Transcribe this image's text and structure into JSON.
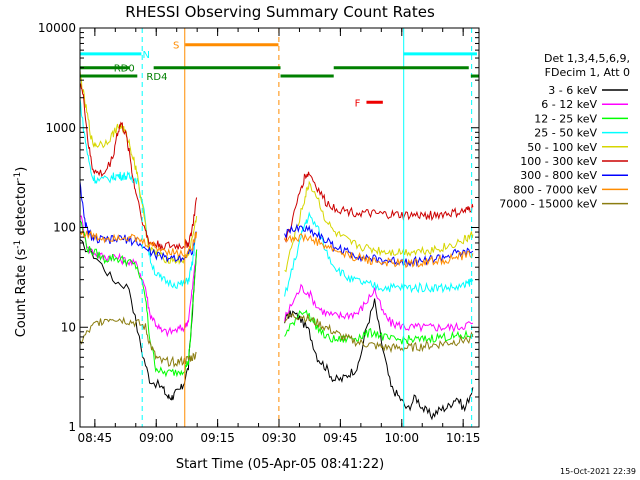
{
  "chart_data": {
    "type": "line",
    "title": "RHESSI Observing Summary Count Rates",
    "xlabel": "Start Time (05-Apr-05 08:41:22)",
    "ylabel": "Count Rate (s",
    "ylabel_sup1": "-1",
    "ylabel_mid": " detector",
    "ylabel_sup2": "-1",
    "ylabel_end": ")",
    "footer": "15-Oct-2021 22:39",
    "x_unit": "minutes after 08:41:22",
    "xlim": [
      0,
      97.5
    ],
    "ylim": [
      1,
      10000
    ],
    "yscale": "log",
    "x_ticks": [
      {
        "x": 3.63,
        "label": "08:45"
      },
      {
        "x": 18.63,
        "label": "09:00"
      },
      {
        "x": 33.63,
        "label": "09:15"
      },
      {
        "x": 48.63,
        "label": "09:30"
      },
      {
        "x": 63.63,
        "label": "09:45"
      },
      {
        "x": 78.63,
        "label": "10:00"
      },
      {
        "x": 93.63,
        "label": "10:15"
      }
    ],
    "y_ticks": [
      {
        "y": 1,
        "label": "1"
      },
      {
        "y": 10,
        "label": "10"
      },
      {
        "y": 100,
        "label": "100"
      },
      {
        "y": 1000,
        "label": "1000"
      },
      {
        "y": 10000,
        "label": "10000"
      }
    ],
    "legend_title": [
      "Det 1,3,4,5,6,9,",
      "FDecim 1, Att 0"
    ],
    "series": [
      {
        "name": "3 - 6 keV",
        "color": "#000000",
        "x": [
          0,
          4,
          8,
          12,
          15,
          17,
          20,
          21.5,
          22.5,
          23.5,
          25,
          26.5,
          27.5,
          28.5,
          50,
          52,
          54,
          56,
          58,
          60,
          62,
          64,
          66,
          68,
          70,
          72,
          74,
          76,
          78,
          80,
          82,
          84,
          86,
          88,
          90,
          92,
          94,
          96
        ],
        "y": [
          70,
          50,
          30,
          25,
          6,
          3,
          2.5,
          2,
          2,
          2.2,
          2.5,
          4,
          15,
          60,
          12,
          14,
          12,
          9,
          5,
          4,
          3,
          3,
          3.5,
          4,
          10,
          18,
          6,
          2.5,
          2,
          1.5,
          2,
          1.5,
          1.3,
          1.5,
          1.6,
          2,
          1.5,
          2.5
        ]
      },
      {
        "name": "6 - 12 keV",
        "color": "#ff00ff",
        "x": [
          0,
          2,
          4,
          6,
          8,
          10,
          12,
          14,
          16,
          17,
          18.5,
          20,
          22,
          24,
          25.5,
          26.5,
          27.5,
          28.5,
          50,
          52,
          54,
          56,
          58,
          60,
          62,
          64,
          66,
          68,
          70,
          72,
          74,
          76,
          78,
          80,
          82,
          84,
          86,
          88,
          90,
          92,
          94,
          96
        ],
        "y": [
          140,
          60,
          55,
          50,
          52,
          48,
          45,
          42,
          25,
          14,
          11,
          9,
          9,
          9.5,
          10,
          12,
          25,
          60,
          12,
          18,
          25,
          22,
          16,
          14,
          13,
          13,
          13.5,
          14,
          18,
          24,
          14,
          11,
          10.5,
          10,
          10,
          10,
          10,
          10,
          10,
          10,
          10.5,
          11
        ]
      },
      {
        "name": "12 - 25 keV",
        "color": "#00ff00",
        "x": [
          0,
          2,
          4,
          6,
          8,
          10,
          12,
          14,
          16,
          17,
          18.5,
          20,
          22,
          24,
          25.5,
          26.5,
          27.5,
          28.5,
          50,
          52,
          54,
          56,
          58,
          60,
          62,
          64,
          66,
          68,
          70,
          72,
          74,
          76,
          78,
          80,
          82,
          84,
          86,
          88,
          90,
          92,
          94,
          96
        ],
        "y": [
          120,
          60,
          55,
          48,
          50,
          48,
          45,
          40,
          20,
          8,
          4,
          3.5,
          3.5,
          3.6,
          3.8,
          4.5,
          15,
          60,
          8,
          11,
          15,
          13,
          10,
          8,
          7.5,
          7.5,
          7.8,
          8,
          8.5,
          9,
          8,
          7.5,
          7.5,
          7.5,
          7.5,
          7.5,
          7.8,
          8,
          8,
          8,
          8.2,
          8.5
        ]
      },
      {
        "name": "25 - 50 keV",
        "color": "#00ffff",
        "x": [
          0,
          1,
          2,
          3,
          4,
          6,
          8,
          9,
          10,
          11,
          12,
          13,
          14,
          16,
          17,
          18.5,
          20,
          22,
          24,
          25.5,
          26.5,
          27.5,
          28.5,
          50,
          52,
          54,
          55,
          56,
          58,
          60,
          62,
          64,
          66,
          68,
          70,
          72,
          74,
          76,
          78,
          80,
          82,
          84,
          86,
          88,
          90,
          92,
          94,
          95,
          96
        ],
        "y": [
          1900,
          900,
          500,
          320,
          300,
          300,
          320,
          330,
          330,
          330,
          320,
          310,
          300,
          120,
          50,
          35,
          30,
          28,
          27,
          27,
          30,
          45,
          90,
          20,
          40,
          80,
          110,
          130,
          100,
          60,
          42,
          35,
          30,
          29,
          27,
          26,
          25,
          25,
          25,
          25,
          25,
          25,
          25,
          25,
          25,
          25,
          26,
          28,
          30
        ]
      },
      {
        "name": "50 - 100 keV",
        "color": "#d6d600",
        "x": [
          0,
          1,
          2,
          3,
          4,
          6,
          8,
          9,
          10,
          11,
          12,
          13,
          14,
          16,
          17,
          18.5,
          20,
          22,
          24,
          25.5,
          26.5,
          27.5,
          28.5,
          50,
          52,
          54,
          55,
          56,
          58,
          60,
          62,
          64,
          66,
          68,
          70,
          72,
          74,
          76,
          78,
          80,
          82,
          84,
          86,
          88,
          90,
          92,
          94,
          95,
          96
        ],
        "y": [
          3500,
          2000,
          1200,
          700,
          680,
          700,
          850,
          1000,
          1050,
          900,
          700,
          500,
          350,
          100,
          60,
          55,
          50,
          48,
          47,
          48,
          55,
          80,
          130,
          35,
          70,
          140,
          200,
          280,
          200,
          120,
          90,
          80,
          70,
          66,
          62,
          60,
          58,
          57,
          57,
          57,
          58,
          59,
          60,
          62,
          65,
          70,
          75,
          80,
          85
        ]
      },
      {
        "name": "100 - 300 keV",
        "color": "#cc0000",
        "x": [
          0,
          1,
          2,
          3,
          4,
          6,
          8,
          9,
          10,
          11,
          12,
          13,
          14,
          16,
          17,
          18.5,
          20,
          22,
          24,
          25.5,
          26.5,
          27.5,
          28.5,
          50,
          52,
          54,
          55,
          56,
          58,
          60,
          62,
          64,
          66,
          68,
          70,
          72,
          74,
          76,
          78,
          80,
          82,
          84,
          86,
          88,
          90,
          92,
          94,
          95,
          96
        ],
        "y": [
          3000,
          1800,
          700,
          400,
          350,
          350,
          500,
          850,
          1100,
          900,
          600,
          300,
          200,
          90,
          70,
          68,
          66,
          65,
          65,
          66,
          70,
          100,
          200,
          70,
          120,
          250,
          330,
          350,
          250,
          180,
          160,
          150,
          145,
          140,
          138,
          136,
          135,
          134,
          133,
          132,
          132,
          132,
          133,
          135,
          138,
          140,
          145,
          150,
          160
        ]
      },
      {
        "name": "300 - 800 keV",
        "color": "#0000ff",
        "x": [
          0,
          1,
          2,
          3,
          4,
          6,
          8,
          10,
          12,
          14,
          16,
          18,
          20,
          22,
          24,
          26,
          27.5,
          28.5,
          50,
          52,
          54,
          56,
          58,
          60,
          62,
          64,
          66,
          68,
          70,
          72,
          74,
          76,
          78,
          80,
          82,
          84,
          86,
          88,
          90,
          92,
          94,
          96
        ],
        "y": [
          300,
          120,
          90,
          80,
          75,
          75,
          75,
          78,
          75,
          72,
          60,
          55,
          50,
          50,
          50,
          52,
          60,
          90,
          85,
          95,
          100,
          95,
          85,
          75,
          65,
          60,
          55,
          52,
          50,
          48,
          47,
          46,
          46,
          46,
          46,
          47,
          48,
          50,
          52,
          55,
          55,
          58
        ]
      },
      {
        "name": "800 - 7000 keV",
        "color": "#ff8c00",
        "x": [
          0,
          2,
          4,
          6,
          8,
          10,
          12,
          14,
          16,
          18,
          20,
          22,
          24,
          26,
          27.5,
          28.5,
          50,
          52,
          54,
          56,
          58,
          60,
          62,
          64,
          66,
          68,
          70,
          72,
          74,
          76,
          78,
          80,
          82,
          84,
          86,
          88,
          90,
          92,
          94,
          96
        ],
        "y": [
          90,
          85,
          80,
          78,
          80,
          82,
          80,
          75,
          70,
          65,
          60,
          58,
          55,
          55,
          65,
          90,
          80,
          78,
          80,
          78,
          72,
          65,
          60,
          55,
          52,
          50,
          48,
          46,
          45,
          44,
          44,
          44,
          44,
          45,
          46,
          47,
          48,
          50,
          52,
          55
        ]
      },
      {
        "name": "7000 - 15000 keV",
        "color": "#8b7d10",
        "x": [
          0,
          2,
          4,
          6,
          8,
          10,
          12,
          14,
          16,
          17,
          18.5,
          20,
          22,
          24,
          25.5,
          26.5,
          27.5,
          28.5,
          50,
          52,
          54,
          56,
          58,
          60,
          62,
          64,
          66,
          68,
          70,
          72,
          74,
          76,
          78,
          80,
          82,
          84,
          86,
          88,
          90,
          92,
          94,
          96
        ],
        "y": [
          7,
          9,
          11,
          12,
          12.5,
          12,
          11.5,
          11,
          10,
          7,
          5,
          4.5,
          4.5,
          4.5,
          4.6,
          4.8,
          5,
          5.5,
          12,
          13,
          13,
          12,
          11,
          10,
          9,
          8,
          7.5,
          7,
          6.8,
          6.5,
          6.3,
          6.2,
          6.2,
          6.2,
          6.3,
          6.5,
          6.6,
          6.8,
          7,
          7.2,
          7.5,
          8
        ]
      }
    ],
    "annotations": {
      "bars": [
        {
          "label": "N",
          "color": "#00ffff",
          "y": 5500,
          "segments": [
            [
              0,
              15
            ]
          ],
          "label_x": 16.2
        },
        {
          "label": "N",
          "color": "#00ffff",
          "y": 5500,
          "segments": [
            [
              79,
              97
            ]
          ],
          "label_x": null
        },
        {
          "label": "S",
          "color": "#ff8c00",
          "y": 6800,
          "segments": [
            [
              25.7,
              48.5
            ]
          ],
          "label_x": 23.5
        },
        {
          "label": "F",
          "color": "#ee0000",
          "y": 1800,
          "segments": [
            [
              70,
              74
            ]
          ],
          "label_x": 67.8
        },
        {
          "label": "RD0",
          "color": "#008000",
          "y": 4000,
          "segments": [
            [
              0,
              12
            ],
            [
              18,
              49
            ],
            [
              62,
              95
            ]
          ],
          "label_x": 10.8
        },
        {
          "label": "RD4",
          "color": "#008000",
          "y": 3300,
          "segments": [
            [
              0,
              14
            ],
            [
              49,
              62
            ],
            [
              95.5,
              97.5
            ]
          ],
          "label_x": 18.8
        }
      ],
      "vlines": [
        {
          "x": 15.2,
          "color": "#00ffff",
          "style": "dashed"
        },
        {
          "x": 25.6,
          "color": "#ff8c00",
          "style": "solid"
        },
        {
          "x": 48.6,
          "color": "#ff8c00",
          "style": "dashed"
        },
        {
          "x": 79.1,
          "color": "#00ffff",
          "style": "solid"
        },
        {
          "x": 95.7,
          "color": "#00ffff",
          "style": "dashed"
        }
      ]
    }
  }
}
